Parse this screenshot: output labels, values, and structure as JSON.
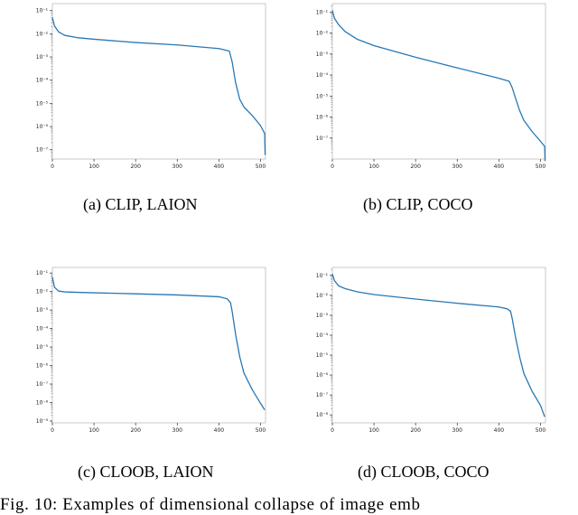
{
  "figure_caption": "Fig. 10: Examples of dimensional collapse of image emb",
  "chart_data": [
    {
      "type": "line",
      "caption": "(a) CLIP, LAION",
      "yscale": "log",
      "xlim": [
        0,
        512
      ],
      "ylim_exp": [
        -7.4,
        -0.7
      ],
      "x_ticks": [
        0,
        100,
        200,
        300,
        400,
        500
      ],
      "y_tick_labels": [
        "10⁻¹",
        "10⁻²",
        "10⁻³",
        "10⁻⁴",
        "10⁻⁵",
        "10⁻⁶",
        "10⁻⁷"
      ],
      "series": [
        {
          "x": [
            0,
            5,
            15,
            30,
            60,
            100,
            200,
            300,
            400,
            425,
            432,
            440,
            450,
            460,
            480,
            500,
            510,
            511
          ],
          "y": [
            0.05,
            0.022,
            0.012,
            0.0085,
            0.0068,
            0.0058,
            0.0042,
            0.0033,
            0.0023,
            0.0018,
            0.0006,
            8e-05,
            1.5e-05,
            7e-06,
            3e-06,
            1.1e-06,
            5e-07,
            6e-08
          ]
        }
      ]
    },
    {
      "type": "line",
      "caption": "(b) CLIP, COCO",
      "yscale": "log",
      "xlim": [
        0,
        512
      ],
      "ylim_exp": [
        -8.0,
        -0.6
      ],
      "x_ticks": [
        0,
        100,
        200,
        300,
        400,
        500
      ],
      "y_tick_labels": [
        "10⁻¹",
        "10⁻²",
        "10⁻³",
        "10⁻⁴",
        "10⁻⁵",
        "10⁻⁶",
        "10⁻⁷"
      ],
      "series": [
        {
          "x": [
            0,
            5,
            15,
            30,
            60,
            100,
            200,
            300,
            400,
            425,
            432,
            440,
            450,
            460,
            480,
            500,
            510,
            511
          ],
          "y": [
            0.12,
            0.05,
            0.025,
            0.012,
            0.005,
            0.0025,
            0.0007,
            0.00022,
            7e-05,
            5e-05,
            2.5e-05,
            8e-06,
            2e-06,
            7e-07,
            2e-07,
            7e-08,
            4e-08,
            8e-09
          ]
        }
      ]
    },
    {
      "type": "line",
      "caption": "(c) CLOOB, LAION",
      "yscale": "log",
      "xlim": [
        0,
        512
      ],
      "ylim_exp": [
        -9.1,
        -0.7
      ],
      "x_ticks": [
        0,
        100,
        200,
        300,
        400,
        500
      ],
      "y_tick_labels": [
        "10⁻¹",
        "10⁻²",
        "10⁻³",
        "10⁻⁴",
        "10⁻⁵",
        "10⁻⁶",
        "10⁻⁷",
        "10⁻⁸",
        "10⁻⁹"
      ],
      "series": [
        {
          "x": [
            0,
            5,
            15,
            30,
            60,
            100,
            200,
            300,
            400,
            420,
            428,
            432,
            440,
            450,
            460,
            480,
            500,
            510
          ],
          "y": [
            0.06,
            0.017,
            0.0105,
            0.0095,
            0.009,
            0.0085,
            0.0075,
            0.0065,
            0.0052,
            0.004,
            0.0025,
            0.0008,
            5e-05,
            3e-06,
            4e-07,
            5e-08,
            9e-09,
            4e-09
          ]
        }
      ]
    },
    {
      "type": "line",
      "caption": "(d) CLOOB, COCO",
      "yscale": "log",
      "xlim": [
        0,
        512
      ],
      "ylim_exp": [
        -8.4,
        -0.6
      ],
      "x_ticks": [
        0,
        100,
        200,
        300,
        400,
        500
      ],
      "y_tick_labels": [
        "10⁻¹",
        "10⁻²",
        "10⁻³",
        "10⁻⁴",
        "10⁻⁵",
        "10⁻⁶",
        "10⁻⁷",
        "10⁻⁸"
      ],
      "series": [
        {
          "x": [
            0,
            5,
            15,
            30,
            60,
            100,
            200,
            300,
            400,
            420,
            428,
            432,
            440,
            450,
            460,
            480,
            500,
            510
          ],
          "y": [
            0.12,
            0.055,
            0.03,
            0.022,
            0.015,
            0.011,
            0.0065,
            0.004,
            0.0026,
            0.0021,
            0.0016,
            0.0007,
            8e-05,
            8e-06,
            1.2e-06,
            1.5e-07,
            3e-08,
            8e-09
          ]
        }
      ]
    }
  ]
}
